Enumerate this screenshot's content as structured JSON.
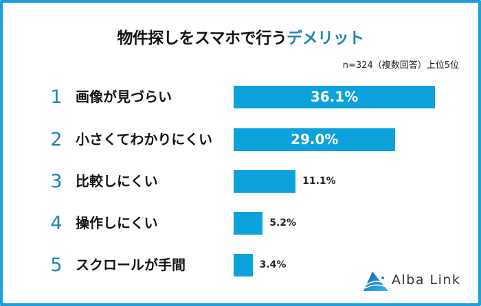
{
  "chart_data": {
    "type": "bar",
    "orientation": "horizontal",
    "title": "物件探しをスマホで行うデメリット",
    "title_plain": "物件探しをスマホで行う",
    "title_highlight": "デメリット",
    "note": "n=324（複数回答）上位5位",
    "categories": [
      "画像が見づらい",
      "小さくてわかりにくい",
      "比較しにくい",
      "操作しにくい",
      "スクロールが手間"
    ],
    "ranks": [
      "1",
      "2",
      "3",
      "4",
      "5"
    ],
    "values": [
      36.1,
      29.0,
      11.1,
      5.2,
      3.4
    ],
    "value_labels": [
      "36.1%",
      "29.0%",
      "11.1%",
      "5.2%",
      "3.4%"
    ],
    "unit": "%",
    "grid": false,
    "colors": {
      "bar": "#0ea2dc",
      "rank": "#1a85b0",
      "highlight": "#1a85b0",
      "frame": "#1aa0dc"
    }
  },
  "logo": {
    "text": "Alba Link"
  }
}
